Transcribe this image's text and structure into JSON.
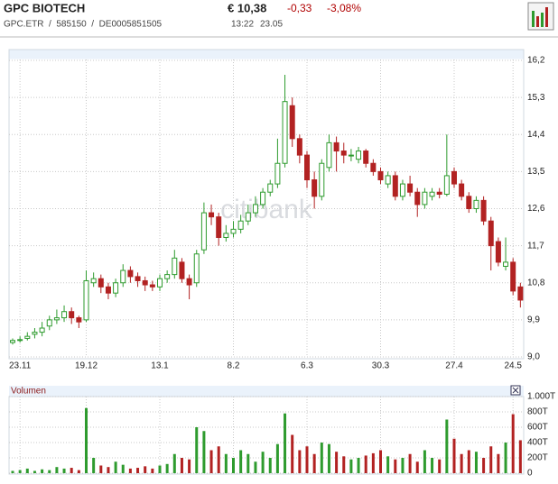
{
  "header": {
    "name": "GPC BIOTECH",
    "codes": "GPC.ETR  /  585150  /  DE0005851505",
    "price": "€ 10,38",
    "change": "-0,33",
    "change_pct": "-3,08%",
    "time": "13:22",
    "date": "23.05"
  },
  "chart_data": [
    {
      "type": "candlestick",
      "watermark": "citibank",
      "up_color": "#2e9b2e",
      "down_color": "#b22222",
      "grid": true,
      "categories": [
        null,
        "23.11",
        null,
        null,
        null,
        null,
        null,
        null,
        null,
        null,
        "19.12",
        null,
        null,
        null,
        null,
        null,
        null,
        null,
        null,
        null,
        "13.1",
        null,
        null,
        null,
        null,
        null,
        null,
        null,
        null,
        null,
        "8.2",
        null,
        null,
        null,
        null,
        null,
        null,
        null,
        null,
        null,
        "6.3",
        null,
        null,
        null,
        null,
        null,
        null,
        null,
        null,
        null,
        "30.3",
        null,
        null,
        null,
        null,
        null,
        null,
        null,
        null,
        null,
        "27.4",
        null,
        null,
        null,
        null,
        null,
        null,
        null,
        "24.5",
        null
      ],
      "open": [
        9.35,
        9.4,
        9.45,
        9.55,
        9.6,
        9.75,
        9.9,
        9.95,
        10.1,
        9.95,
        9.9,
        10.8,
        10.9,
        10.7,
        10.55,
        10.8,
        11.1,
        10.95,
        10.85,
        10.75,
        10.7,
        10.9,
        11.0,
        11.3,
        10.9,
        10.8,
        11.6,
        12.5,
        12.4,
        11.9,
        12.0,
        12.1,
        12.3,
        12.5,
        12.7,
        13.0,
        13.2,
        13.7,
        15.1,
        14.3,
        13.9,
        13.3,
        12.9,
        13.6,
        14.2,
        14.0,
        13.9,
        13.8,
        14.0,
        13.7,
        13.5,
        13.2,
        13.4,
        12.9,
        13.2,
        13.0,
        12.7,
        12.9,
        13.0,
        12.95,
        13.5,
        13.2,
        12.9,
        12.6,
        12.8,
        12.3,
        11.8,
        11.2,
        11.3,
        10.7
      ],
      "high": [
        9.45,
        9.5,
        9.6,
        9.7,
        9.85,
        10.0,
        10.15,
        10.25,
        10.2,
        10.0,
        11.1,
        11.05,
        11.0,
        10.8,
        10.9,
        11.25,
        11.2,
        11.05,
        10.95,
        10.85,
        11.0,
        11.1,
        11.6,
        11.4,
        11.0,
        11.6,
        12.75,
        12.7,
        12.5,
        12.2,
        12.3,
        12.45,
        12.7,
        12.9,
        13.1,
        13.3,
        14.3,
        15.85,
        15.3,
        14.4,
        14.0,
        13.5,
        13.8,
        14.4,
        14.35,
        14.2,
        14.05,
        14.1,
        14.05,
        13.8,
        13.6,
        13.5,
        13.5,
        13.3,
        13.4,
        13.1,
        13.1,
        13.1,
        13.1,
        14.4,
        13.6,
        13.3,
        13.0,
        12.9,
        12.9,
        12.4,
        11.9,
        11.9,
        11.4,
        10.8
      ],
      "low": [
        9.3,
        9.35,
        9.4,
        9.45,
        9.5,
        9.65,
        9.8,
        9.85,
        9.8,
        9.7,
        9.85,
        10.7,
        10.55,
        10.4,
        10.45,
        10.7,
        10.8,
        10.7,
        10.6,
        10.6,
        10.6,
        10.8,
        10.9,
        10.8,
        10.4,
        10.7,
        11.5,
        12.2,
        11.7,
        11.8,
        11.9,
        12.0,
        12.2,
        12.4,
        12.6,
        12.9,
        13.1,
        13.6,
        14.1,
        13.7,
        13.1,
        12.6,
        12.8,
        13.5,
        13.5,
        13.7,
        13.75,
        13.7,
        13.6,
        13.4,
        13.2,
        13.1,
        12.8,
        12.8,
        12.9,
        12.4,
        12.6,
        12.8,
        12.85,
        12.9,
        13.1,
        12.8,
        12.5,
        12.5,
        12.2,
        11.1,
        11.2,
        11.1,
        10.5,
        10.2
      ],
      "close": [
        9.4,
        9.42,
        9.5,
        9.6,
        9.7,
        9.9,
        9.95,
        10.1,
        9.95,
        9.85,
        10.85,
        10.9,
        10.7,
        10.55,
        10.8,
        11.1,
        10.95,
        10.85,
        10.75,
        10.7,
        10.9,
        11.0,
        11.4,
        10.9,
        10.75,
        11.5,
        12.5,
        12.4,
        11.9,
        12.0,
        12.1,
        12.3,
        12.5,
        12.7,
        13.0,
        13.2,
        13.7,
        15.2,
        14.3,
        13.9,
        13.3,
        12.9,
        13.7,
        14.2,
        14.0,
        13.9,
        13.9,
        14.0,
        13.7,
        13.5,
        13.3,
        13.4,
        12.9,
        13.2,
        13.0,
        12.7,
        13.0,
        13.0,
        12.95,
        13.4,
        13.2,
        12.9,
        12.6,
        12.8,
        12.3,
        11.7,
        11.3,
        11.3,
        10.6,
        10.38
      ],
      "ylim": [
        9.0,
        16.2
      ],
      "yticks": [
        {
          "value": 9.0,
          "label": "9,0"
        },
        {
          "value": 9.9,
          "label": "9,9"
        },
        {
          "value": 10.8,
          "label": "10,8"
        },
        {
          "value": 11.7,
          "label": "11,7"
        },
        {
          "value": 12.6,
          "label": "12,6"
        },
        {
          "value": 13.5,
          "label": "13,5"
        },
        {
          "value": 14.4,
          "label": "14,4"
        },
        {
          "value": 15.3,
          "label": "15,3"
        },
        {
          "value": 16.2,
          "label": "16,2"
        }
      ]
    },
    {
      "type": "bar",
      "title": "Volumen",
      "grid": true,
      "values": [
        30,
        40,
        60,
        30,
        50,
        40,
        80,
        60,
        70,
        40,
        850,
        200,
        100,
        80,
        150,
        110,
        60,
        70,
        90,
        60,
        100,
        120,
        250,
        200,
        180,
        600,
        550,
        300,
        350,
        250,
        200,
        300,
        250,
        150,
        280,
        200,
        380,
        780,
        500,
        300,
        350,
        250,
        400,
        380,
        280,
        220,
        180,
        200,
        230,
        260,
        300,
        220,
        180,
        200,
        250,
        150,
        300,
        200,
        180,
        700,
        450,
        250,
        300,
        280,
        200,
        350,
        250,
        400,
        770,
        430
      ],
      "ylim": [
        0,
        1000
      ],
      "yticks": [
        0,
        {
          "value": 200,
          "label": "200T"
        },
        {
          "value": 400,
          "label": "400T"
        },
        {
          "value": 600,
          "label": "600T"
        },
        {
          "value": 800,
          "label": "800T"
        },
        {
          "value": 1000,
          "label": "1.000T"
        }
      ]
    }
  ]
}
